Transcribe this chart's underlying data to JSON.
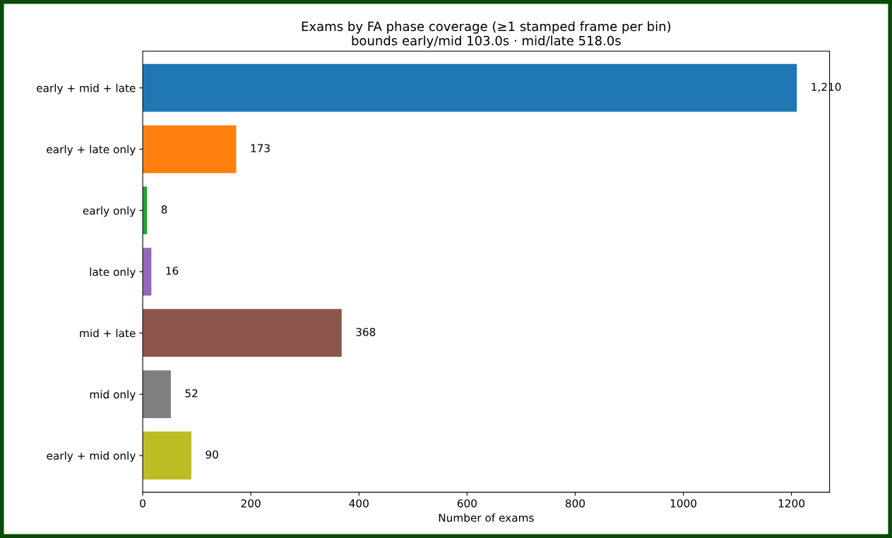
{
  "chart_data": {
    "type": "bar",
    "orientation": "horizontal",
    "title": "Exams by FA phase coverage (≥1 stamped frame per bin)\nbounds early/mid 103.0s · mid/late 518.0s",
    "xlabel": "Number of exams",
    "categories": [
      "early + mid + late",
      "early + late only",
      "early only",
      "late only",
      "mid + late",
      "mid only",
      "early + mid only"
    ],
    "values": [
      1210,
      173,
      8,
      16,
      368,
      52,
      90
    ],
    "colors": [
      "#1f77b4",
      "#ff7f0e",
      "#2ca02c",
      "#9467bd",
      "#8c564b",
      "#7f7f7f",
      "#bcbd22"
    ],
    "value_labels": [
      "1,210",
      "173",
      "8",
      "16",
      "368",
      "52",
      "90"
    ],
    "xlim": [
      0,
      1270.5
    ],
    "xticks": [
      0,
      200,
      400,
      600,
      800,
      1000,
      1200
    ],
    "grid": false,
    "legend": false
  }
}
